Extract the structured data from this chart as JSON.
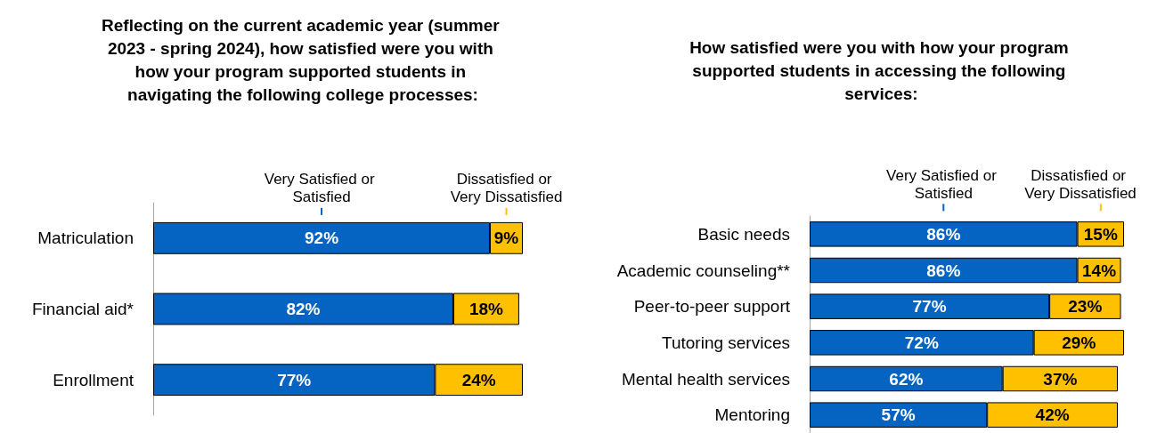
{
  "chart_data": [
    {
      "type": "bar",
      "orientation": "horizontal",
      "stacked": true,
      "legend": false,
      "title": "Reflecting on the current academic year (summer 2023 - spring 2024), how satisfied were you with how your program supported students in navigating the following college processes:",
      "categories": [
        "Matriculation",
        "Financial aid*",
        "Enrollment"
      ],
      "series": [
        {
          "name": "Very Satisfied or Satisfied",
          "color": "#0563c1",
          "values": [
            92,
            82,
            77
          ],
          "value_labels": [
            "92%",
            "82%",
            "77%"
          ]
        },
        {
          "name": "Dissatisfied or Very Dissatisfied",
          "color": "#ffc000",
          "values": [
            9,
            18,
            24
          ],
          "value_labels": [
            "9%",
            "18%",
            "24%"
          ]
        }
      ]
    },
    {
      "type": "bar",
      "orientation": "horizontal",
      "stacked": true,
      "legend": false,
      "title": "How satisfied were you with how your program supported students in accessing the following services:",
      "categories": [
        "Basic needs",
        "Academic counseling**",
        "Peer-to-peer support",
        "Tutoring services",
        "Mental health services",
        "Mentoring"
      ],
      "series": [
        {
          "name": "Very Satisfied or Satisfied",
          "color": "#0563c1",
          "values": [
            86,
            86,
            77,
            72,
            62,
            57
          ],
          "value_labels": [
            "86%",
            "86%",
            "77%",
            "72%",
            "62%",
            "57%"
          ]
        },
        {
          "name": "Dissatisfied or Very Dissatisfied",
          "color": "#ffc000",
          "values": [
            15,
            14,
            23,
            29,
            37,
            42
          ],
          "value_labels": [
            "15%",
            "14%",
            "23%",
            "29%",
            "37%",
            "42%"
          ]
        }
      ]
    }
  ]
}
